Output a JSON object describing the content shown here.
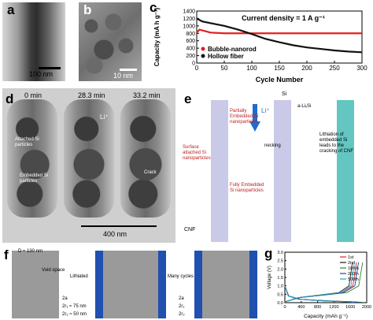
{
  "panels": {
    "a": {
      "label": "a",
      "scale": "100 nm"
    },
    "b": {
      "label": "b",
      "scale": "10 nm"
    },
    "c": {
      "label": "c"
    },
    "d": {
      "label": "d",
      "times": [
        "0 min",
        "28.3 min",
        "33.2 min"
      ],
      "annot": [
        "Attached Si particles",
        "Embedded Si particles",
        "Crack",
        "Li⁺"
      ],
      "scale": "400 nm"
    },
    "e": {
      "label": "e",
      "texts": [
        "Surface attached Si nanoparticles",
        "Partially Embedded Si nanoparticles",
        "Fully Embedded Si nanoparticles",
        "CNF",
        "Li⁺",
        "Si",
        "a-LiₓSi",
        "necking",
        "Lithiation of embedded Si leads to the cracking of CNF"
      ]
    },
    "f": {
      "label": "f",
      "texts": [
        "D ≈ 130 nm",
        "Void space",
        "Lithiated",
        "Many cycles",
        "2a",
        "2r₁ ≈ 75 nm",
        "2r₂ ≈ 50 nm",
        "2a",
        "2r₁",
        "2r₂"
      ]
    },
    "g": {
      "label": "g"
    }
  },
  "chart_data": [
    {
      "type": "line",
      "title": "Current density = 1 A g⁻¹",
      "xlabel": "Cycle Number",
      "ylabel": "Capacity (mA h g⁻¹)",
      "xlim": [
        0,
        300
      ],
      "ylim": [
        0,
        1400
      ],
      "xticks": [
        0,
        50,
        100,
        150,
        200,
        250,
        300
      ],
      "yticks": [
        0,
        200,
        400,
        600,
        800,
        1000,
        1200,
        1400
      ],
      "legend_position": "bottom-left",
      "series": [
        {
          "name": "Bubble-nanorod",
          "color": "#e02020",
          "x": [
            0,
            5,
            25,
            50,
            75,
            100,
            150,
            200,
            250,
            300
          ],
          "y": [
            820,
            900,
            820,
            800,
            800,
            800,
            800,
            800,
            800,
            800
          ]
        },
        {
          "name": "Hollow fiber",
          "color": "#111111",
          "x": [
            0,
            10,
            30,
            50,
            75,
            100,
            125,
            150,
            175,
            200,
            225,
            250,
            275,
            300
          ],
          "y": [
            1200,
            1120,
            1060,
            1000,
            900,
            780,
            650,
            560,
            480,
            420,
            380,
            340,
            310,
            290
          ]
        }
      ]
    },
    {
      "type": "line",
      "xlabel": "Capacity (mAh g⁻¹)",
      "ylabel": "Voltage (V)",
      "xlim": [
        0,
        2000
      ],
      "ylim": [
        0,
        3.0
      ],
      "xticks": [
        0,
        400,
        800,
        1200,
        1600,
        2000
      ],
      "yticks": [
        0.0,
        0.5,
        1.0,
        1.5,
        2.0,
        2.5,
        3.0
      ],
      "legend_position": "top-right",
      "series": [
        {
          "name": "1st",
          "color": "#e02020",
          "capacity": 1750
        },
        {
          "name": "2nd",
          "color": "#1a1a1a",
          "capacity": 1650
        },
        {
          "name": "100th",
          "color": "#2a8a2a",
          "capacity": 1900
        },
        {
          "name": "200th",
          "color": "#2040c0",
          "capacity": 1800
        },
        {
          "name": "500th",
          "color": "#20a0c0",
          "capacity": 1700
        }
      ]
    }
  ]
}
